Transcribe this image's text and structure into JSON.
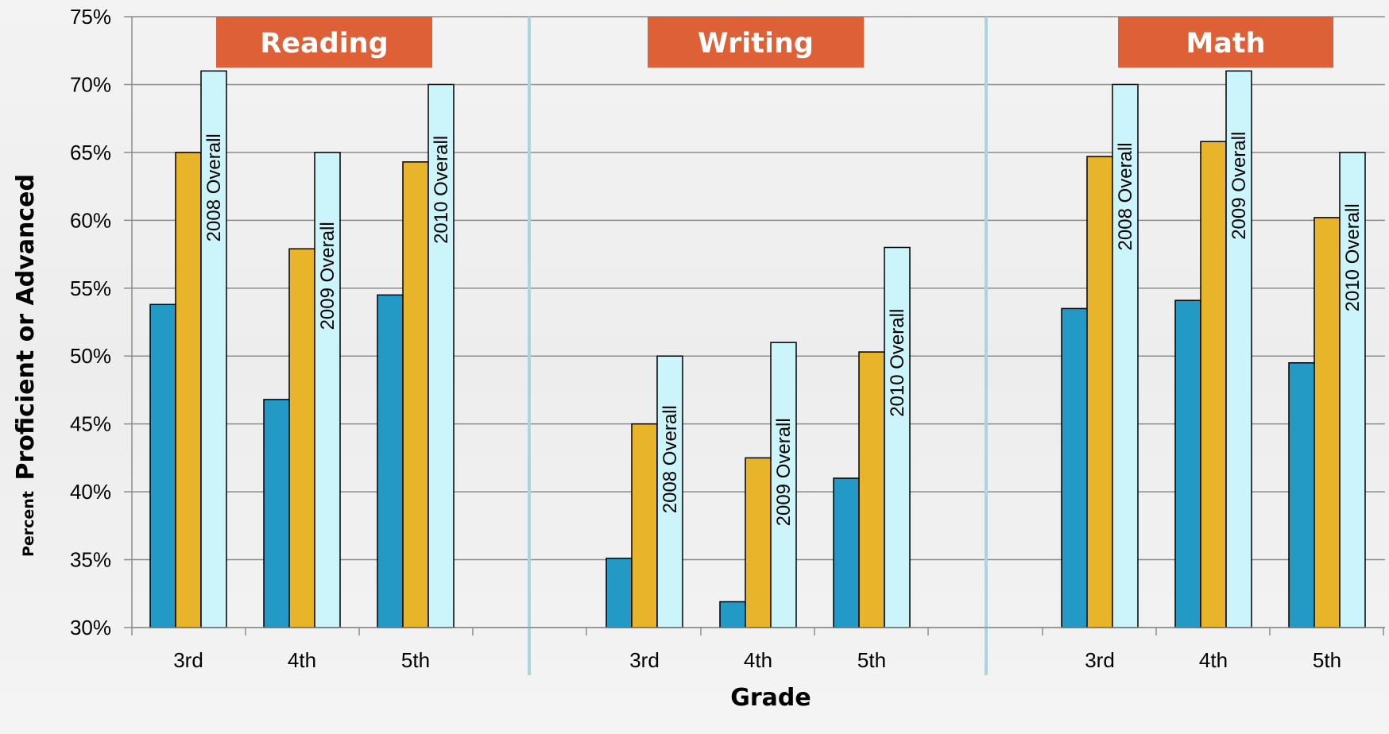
{
  "colors": {
    "series_2008": "#2399c6",
    "series_2009": "#e8b42a",
    "series_2010": "#ccf4fb",
    "title_box": "#dd6036",
    "separator": "#a9d6dc",
    "grid": "#8c8c8c"
  },
  "chart_data": {
    "type": "bar",
    "ylabel_small": "Percent",
    "ylabel_big": "Proficient or Advanced",
    "xlabel": "Grade",
    "ylim": [
      30,
      75
    ],
    "yticks": [
      "30%",
      "35%",
      "40%",
      "45%",
      "50%",
      "55%",
      "60%",
      "65%",
      "70%",
      "75%"
    ],
    "ytick_values": [
      30,
      35,
      40,
      45,
      50,
      55,
      60,
      65,
      70,
      75
    ],
    "grid": true,
    "panels": [
      {
        "title": "Reading",
        "categories": [
          "3rd",
          "4th",
          "5th"
        ],
        "series": [
          {
            "values": [
              53.8,
              46.8,
              54.5
            ]
          },
          {
            "values": [
              65.0,
              57.9,
              64.3
            ]
          },
          {
            "values": [
              71.0,
              65.0,
              70.0
            ]
          }
        ],
        "bar_labels": [
          "2008 Overall",
          "2009 Overall",
          "2010 Overall"
        ]
      },
      {
        "title": "Writing",
        "categories": [
          "3rd",
          "4th",
          "5th"
        ],
        "series": [
          {
            "values": [
              35.1,
              31.9,
              41.0
            ]
          },
          {
            "values": [
              45.0,
              42.5,
              50.3
            ]
          },
          {
            "values": [
              50.0,
              51.0,
              58.0
            ]
          }
        ],
        "bar_labels": [
          "2008 Overall",
          "2009 Overall",
          "2010 Overall"
        ]
      },
      {
        "title": "Math",
        "categories": [
          "3rd",
          "4th",
          "5th"
        ],
        "series": [
          {
            "values": [
              53.5,
              54.1,
              49.5
            ]
          },
          {
            "values": [
              64.7,
              65.8,
              60.2
            ]
          },
          {
            "values": [
              70.0,
              71.0,
              65.0
            ]
          }
        ],
        "bar_labels": [
          "2008 Overall",
          "2009 Overall",
          "2010 Overall"
        ]
      }
    ]
  }
}
